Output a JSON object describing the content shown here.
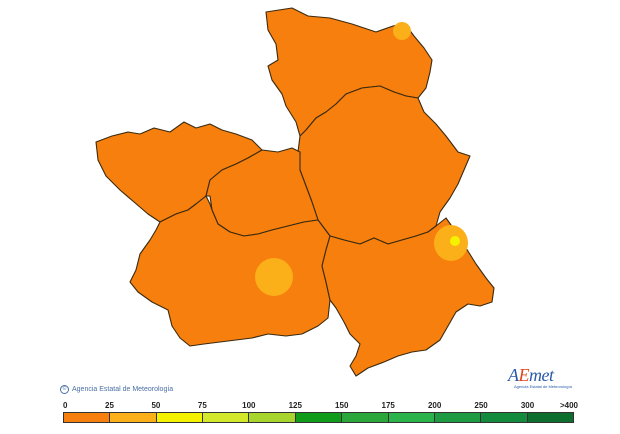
{
  "map": {
    "fill_color": "#f77f0d",
    "border_color": "#3a2a10",
    "highlight_colors": [
      "#fbb01a",
      "#f5f200"
    ]
  },
  "copyright": {
    "icon": "copyright-icon",
    "text": "Agencia Estatal de Meteorología"
  },
  "logo": {
    "prefix": "A",
    "accent": "E",
    "suffix": "met",
    "subtitle": "Agencia Estatal de Meteorología"
  },
  "legend": {
    "labels": [
      "0",
      "25",
      "50",
      "75",
      "100",
      "125",
      "150",
      "175",
      "200",
      "250",
      "300",
      ">400"
    ],
    "colors": [
      "#f77f0d",
      "#fbb01a",
      "#f5f200",
      "#d3e82a",
      "#a8d52d",
      "#119b1a",
      "#2aa63a",
      "#29b34a",
      "#1e9a43",
      "#138a3c",
      "#0e6e2e"
    ]
  }
}
